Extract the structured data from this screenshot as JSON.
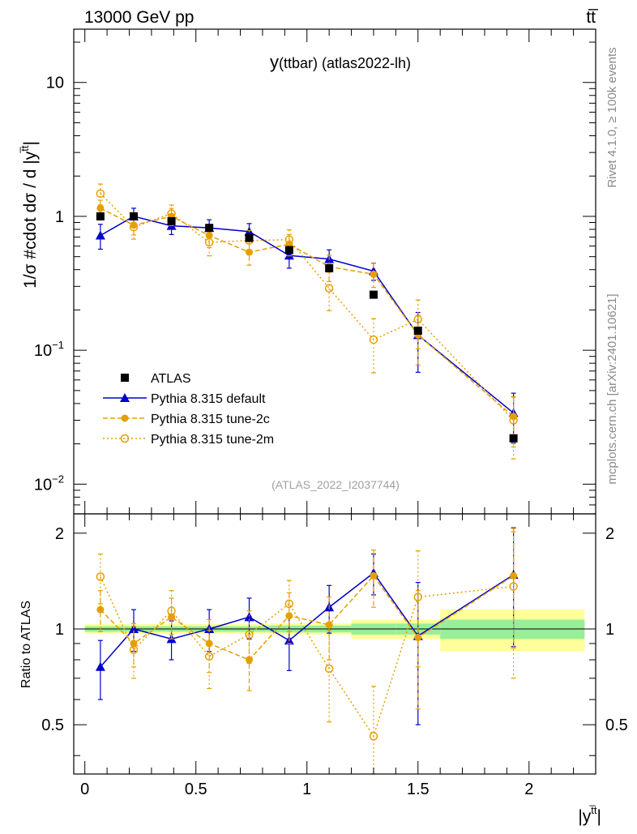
{
  "header": {
    "left": "13000 GeV pp",
    "right": "tt̅"
  },
  "side_text": {
    "rivet": "Rivet 4.1.0, ≥ 100k events",
    "mcplots": "mcplots.cern.ch [arXiv:2401.10621]"
  },
  "chart_data": {
    "type": "line",
    "title": "y(ttbar) (atlas2022-lh)",
    "title_main": "y",
    "title_sub": "(ttbar) (atlas2022-lh)",
    "analysis_id": "(ATLAS_2022_I2037744)",
    "ylabel": "1/σ #cdot dσ / d |y",
    "ylabel_sup": "t̅t",
    "ylabel_end": "|",
    "xlabel": "|y",
    "xlabel_sup": "t̅t",
    "xlabel_end": "|",
    "ratio_ylabel": "Ratio to ATLAS",
    "xlim": [
      -0.05,
      2.3
    ],
    "ylim": [
      0.006,
      25
    ],
    "ratio_ylim": [
      0.35,
      2.3
    ],
    "x_ticks": [
      {
        "v": 0,
        "label": "0"
      },
      {
        "v": 0.5,
        "label": "0.5"
      },
      {
        "v": 1,
        "label": "1"
      },
      {
        "v": 1.5,
        "label": "1.5"
      },
      {
        "v": 2,
        "label": "2"
      }
    ],
    "y_ticks": [
      {
        "v": 0.01,
        "base": "10",
        "exp": "−2"
      },
      {
        "v": 0.1,
        "base": "10",
        "exp": "−1"
      },
      {
        "v": 1,
        "base": "1",
        "exp": ""
      },
      {
        "v": 10,
        "base": "10",
        "exp": ""
      }
    ],
    "ratio_ticks": [
      {
        "v": 0.5,
        "label": "0.5"
      },
      {
        "v": 1,
        "label": "1"
      },
      {
        "v": 2,
        "label": "2"
      }
    ],
    "x": [
      0.07,
      0.22,
      0.39,
      0.56,
      0.74,
      0.92,
      1.1,
      1.3,
      1.5,
      1.93
    ],
    "bin_edges": [
      0,
      0.15,
      0.3,
      0.47,
      0.65,
      0.83,
      1.0,
      1.2,
      1.4,
      1.6,
      2.25
    ],
    "data": {
      "name": "ATLAS",
      "values": [
        1.0,
        1.0,
        0.92,
        0.82,
        0.69,
        0.56,
        0.41,
        0.26,
        0.14,
        0.022
      ],
      "band_inner": [
        0.02,
        0.02,
        0.02,
        0.02,
        0.02,
        0.025,
        0.025,
        0.04,
        0.04,
        0.07
      ],
      "band_outer": [
        0.035,
        0.035,
        0.035,
        0.035,
        0.035,
        0.04,
        0.04,
        0.07,
        0.07,
        0.15
      ]
    },
    "series": [
      {
        "name": "Pythia 8.315 default",
        "color": "#0000cc",
        "marker": "triangle",
        "dash": "",
        "values": [
          0.72,
          1.0,
          0.85,
          0.82,
          0.77,
          0.51,
          0.48,
          0.39,
          0.13,
          0.034
        ],
        "ratio": [
          0.76,
          1.0,
          0.93,
          1.0,
          1.09,
          0.92,
          1.17,
          1.5,
          0.95,
          1.48
        ],
        "ratio_err": [
          0.16,
          0.15,
          0.13,
          0.15,
          0.16,
          0.18,
          0.2,
          0.22,
          0.45,
          0.6
        ]
      },
      {
        "name": "Pythia 8.315 tune-2c",
        "color": "#e69f00",
        "marker": "circle",
        "dash": "6,3",
        "values": [
          1.15,
          0.86,
          1.0,
          0.72,
          0.54,
          0.62,
          0.42,
          0.37,
          0.13,
          0.032
        ],
        "ratio": [
          1.15,
          0.9,
          1.09,
          0.9,
          0.8,
          1.1,
          1.03,
          1.47,
          0.94,
          1.47
        ],
        "ratio_err": [
          0.17,
          0.14,
          0.16,
          0.17,
          0.16,
          0.2,
          0.23,
          0.3,
          0.38,
          0.6
        ]
      },
      {
        "name": "Pythia 8.315 tune-2m",
        "color": "#e69f00",
        "marker": "open-circle",
        "dash": "2,3",
        "values": [
          1.48,
          0.83,
          1.05,
          0.64,
          0.66,
          0.67,
          0.29,
          0.12,
          0.17,
          0.03
        ],
        "ratio": [
          1.46,
          0.86,
          1.14,
          0.82,
          0.96,
          1.2,
          0.75,
          0.46,
          1.26,
          1.36
        ],
        "ratio_err": [
          0.26,
          0.16,
          0.18,
          0.17,
          0.18,
          0.22,
          0.24,
          0.2,
          0.5,
          0.66
        ]
      }
    ],
    "legend_position": "lower-left"
  }
}
